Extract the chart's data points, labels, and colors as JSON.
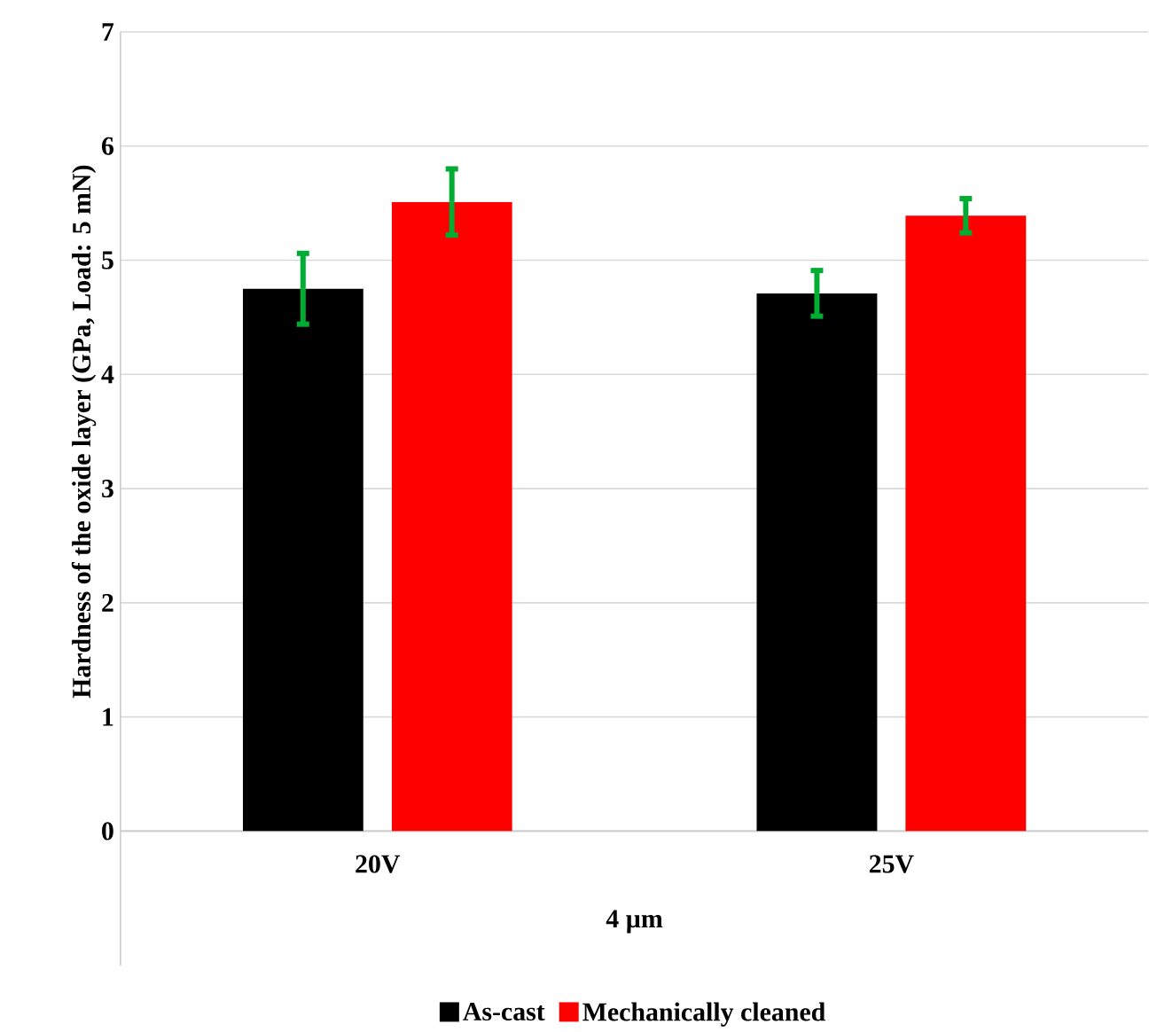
{
  "chart_data": {
    "type": "bar",
    "ylabel": "Hardness of the oxide layer (GPa, Load: 5 mN)",
    "xlabel": "4 µm",
    "categories": [
      "20V",
      "25V"
    ],
    "series": [
      {
        "name": "As-cast",
        "color": "#000000",
        "values": [
          4.75,
          4.71
        ],
        "errors": [
          0.31,
          0.2
        ]
      },
      {
        "name": "Mechanically cleaned",
        "color": "#ff0000",
        "values": [
          5.51,
          5.39
        ],
        "errors": [
          0.29,
          0.15
        ]
      }
    ],
    "ylim": [
      0,
      7
    ],
    "yticks": [
      0,
      1,
      2,
      3,
      4,
      5,
      6,
      7
    ],
    "grid": "y",
    "legend": "bottom"
  }
}
